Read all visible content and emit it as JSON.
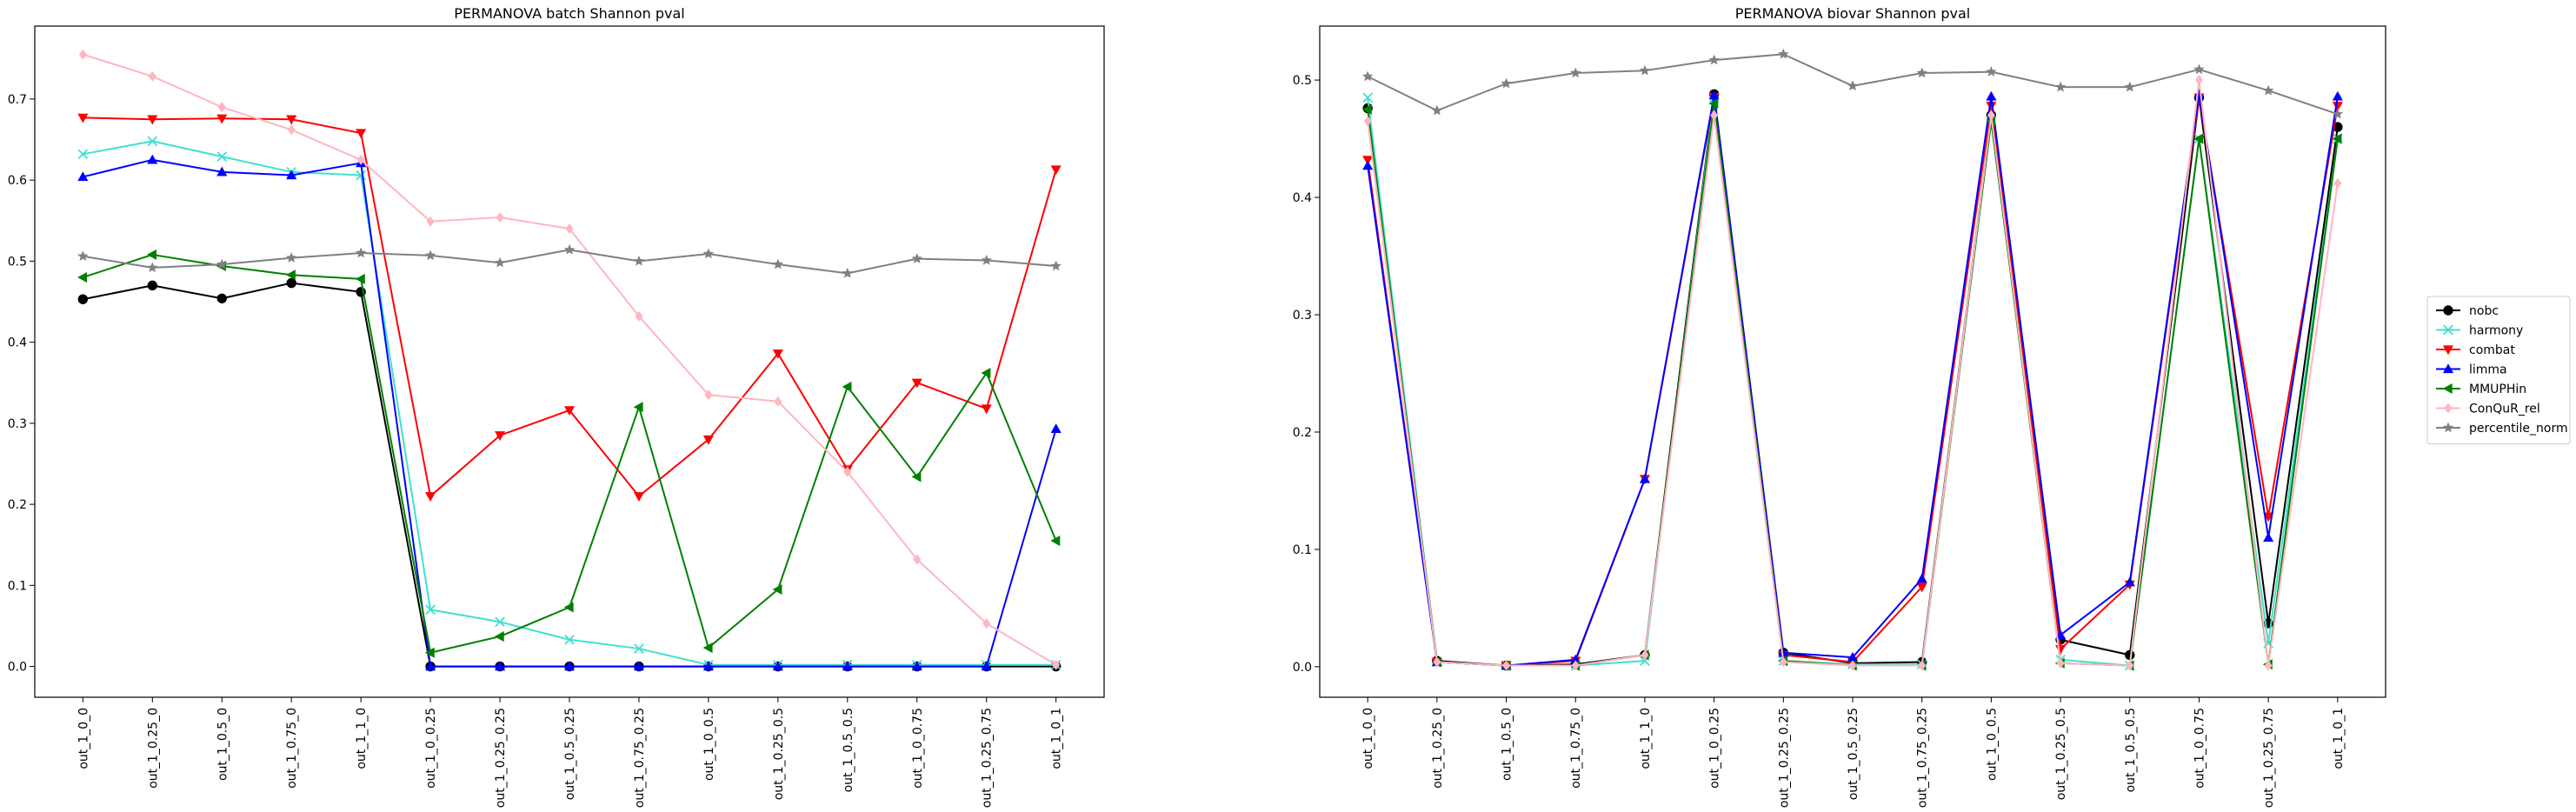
{
  "chart_data": [
    {
      "type": "line",
      "title": "PERMANOVA batch Shannon pval",
      "xlabel": "",
      "ylabel": "",
      "ylim": [
        -0.038,
        0.79
      ],
      "yticks": [
        0.0,
        0.1,
        0.2,
        0.3,
        0.4,
        0.5,
        0.6,
        0.7
      ],
      "ytick_labels": [
        "0.0",
        "0.1",
        "0.2",
        "0.3",
        "0.4",
        "0.5",
        "0.6",
        "0.7"
      ],
      "grid": false,
      "categories": [
        "out_1_0_0",
        "out_1_0.25_0",
        "out_1_0.5_0",
        "out_1_0.75_0",
        "out_1_1_0",
        "out_1_0_0.25",
        "out_1_0.25_0.25",
        "out_1_0.5_0.25",
        "out_1_0.75_0.25",
        "out_1_0_0.5",
        "out_1_0.25_0.5",
        "out_1_0.5_0.5",
        "out_1_0_0.75",
        "out_1_0.25_0.75",
        "out_1_0_1"
      ],
      "series": [
        {
          "name": "nobc",
          "color": "#000000",
          "marker": "circle",
          "values": [
            0.453,
            0.47,
            0.454,
            0.473,
            0.462,
            0.0,
            0.0,
            0.0,
            0.0,
            0.0,
            0.0,
            0.0,
            0.0,
            0.0,
            0.0
          ]
        },
        {
          "name": "harmony",
          "color": "#40e0d0",
          "marker": "x",
          "values": [
            0.632,
            0.648,
            0.629,
            0.61,
            0.606,
            0.07,
            0.055,
            0.033,
            0.022,
            0.002,
            0.002,
            0.002,
            0.002,
            0.002,
            0.002
          ]
        },
        {
          "name": "combat",
          "color": "#ff0000",
          "marker": "triangle-down",
          "values": [
            0.677,
            0.675,
            0.676,
            0.675,
            0.658,
            0.21,
            0.285,
            0.316,
            0.21,
            0.28,
            0.386,
            0.243,
            0.35,
            0.318,
            0.613
          ]
        },
        {
          "name": "limma",
          "color": "#0000ff",
          "marker": "triangle-up",
          "values": [
            0.604,
            0.625,
            0.61,
            0.606,
            0.621,
            0.0,
            0.0,
            0.0,
            0.0,
            0.0,
            0.0,
            0.0,
            0.0,
            0.0,
            0.293
          ]
        },
        {
          "name": "MMUPHin",
          "color": "#008000",
          "marker": "triangle-left",
          "values": [
            0.48,
            0.508,
            0.494,
            0.483,
            0.478,
            0.017,
            0.037,
            0.073,
            0.32,
            0.023,
            0.095,
            0.345,
            0.234,
            0.362,
            0.155
          ]
        },
        {
          "name": "ConQuR_rel",
          "color": "#ffb6c1",
          "marker": "diamond",
          "values": [
            0.755,
            0.728,
            0.69,
            0.662,
            0.625,
            0.549,
            0.554,
            0.54,
            0.432,
            0.335,
            0.327,
            0.24,
            0.132,
            0.053,
            0.002
          ]
        },
        {
          "name": "percentile_norm",
          "color": "#808080",
          "marker": "star",
          "values": [
            0.506,
            0.492,
            0.496,
            0.504,
            0.51,
            0.507,
            0.498,
            0.514,
            0.5,
            0.509,
            0.496,
            0.485,
            0.503,
            0.501,
            0.494
          ]
        }
      ]
    },
    {
      "type": "line",
      "title": "PERMANOVA biovar Shannon pval",
      "xlabel": "",
      "ylabel": "",
      "ylim": [
        -0.026,
        0.546
      ],
      "yticks": [
        0.0,
        0.1,
        0.2,
        0.3,
        0.4,
        0.5
      ],
      "ytick_labels": [
        "0.0",
        "0.1",
        "0.2",
        "0.3",
        "0.4",
        "0.5"
      ],
      "grid": false,
      "categories": [
        "out_1_0_0",
        "out_1_0.25_0",
        "out_1_0.5_0",
        "out_1_0.75_0",
        "out_1_1_0",
        "out_1_0_0.25",
        "out_1_0.25_0.25",
        "out_1_0.5_0.25",
        "out_1_0.75_0.25",
        "out_1_0_0.5",
        "out_1_0.25_0.5",
        "out_1_0.5_0.5",
        "out_1_0_0.75",
        "out_1_0.25_0.75",
        "out_1_0_1"
      ],
      "series": [
        {
          "name": "nobc",
          "color": "#000000",
          "marker": "circle",
          "values": [
            0.476,
            0.005,
            0.001,
            0.002,
            0.01,
            0.488,
            0.012,
            0.003,
            0.004,
            0.47,
            0.023,
            0.01,
            0.485,
            0.037,
            0.46
          ]
        },
        {
          "name": "harmony",
          "color": "#40e0d0",
          "marker": "x",
          "values": [
            0.485,
            0.004,
            0.001,
            0.001,
            0.005,
            0.485,
            0.005,
            0.002,
            0.002,
            0.465,
            0.006,
            0.001,
            0.45,
            0.02,
            0.45
          ]
        },
        {
          "name": "combat",
          "color": "#ff0000",
          "marker": "triangle-down",
          "values": [
            0.432,
            0.004,
            0.001,
            0.005,
            0.16,
            0.485,
            0.01,
            0.004,
            0.068,
            0.478,
            0.015,
            0.07,
            0.485,
            0.128,
            0.478
          ]
        },
        {
          "name": "limma",
          "color": "#0000ff",
          "marker": "triangle-up",
          "values": [
            0.427,
            0.004,
            0.001,
            0.006,
            0.16,
            0.487,
            0.012,
            0.008,
            0.075,
            0.486,
            0.027,
            0.072,
            0.488,
            0.11,
            0.486
          ]
        },
        {
          "name": "MMUPHin",
          "color": "#008000",
          "marker": "triangle-left",
          "values": [
            0.475,
            0.004,
            0.001,
            0.001,
            0.01,
            0.48,
            0.005,
            0.001,
            0.001,
            0.465,
            0.003,
            0.001,
            0.45,
            0.002,
            0.45
          ]
        },
        {
          "name": "ConQuR_rel",
          "color": "#ffb6c1",
          "marker": "diamond",
          "values": [
            0.465,
            0.004,
            0.001,
            0.001,
            0.01,
            0.47,
            0.004,
            0.001,
            0.001,
            0.47,
            0.003,
            0.001,
            0.5,
            0.001,
            0.412
          ]
        },
        {
          "name": "percentile_norm",
          "color": "#808080",
          "marker": "star",
          "values": [
            0.503,
            0.474,
            0.497,
            0.506,
            0.508,
            0.517,
            0.522,
            0.495,
            0.506,
            0.507,
            0.494,
            0.494,
            0.509,
            0.491,
            0.471
          ]
        }
      ]
    }
  ],
  "legend": {
    "placement": "right",
    "entries": [
      "nobc",
      "harmony",
      "combat",
      "limma",
      "MMUPHin",
      "ConQuR_rel",
      "percentile_norm"
    ]
  }
}
